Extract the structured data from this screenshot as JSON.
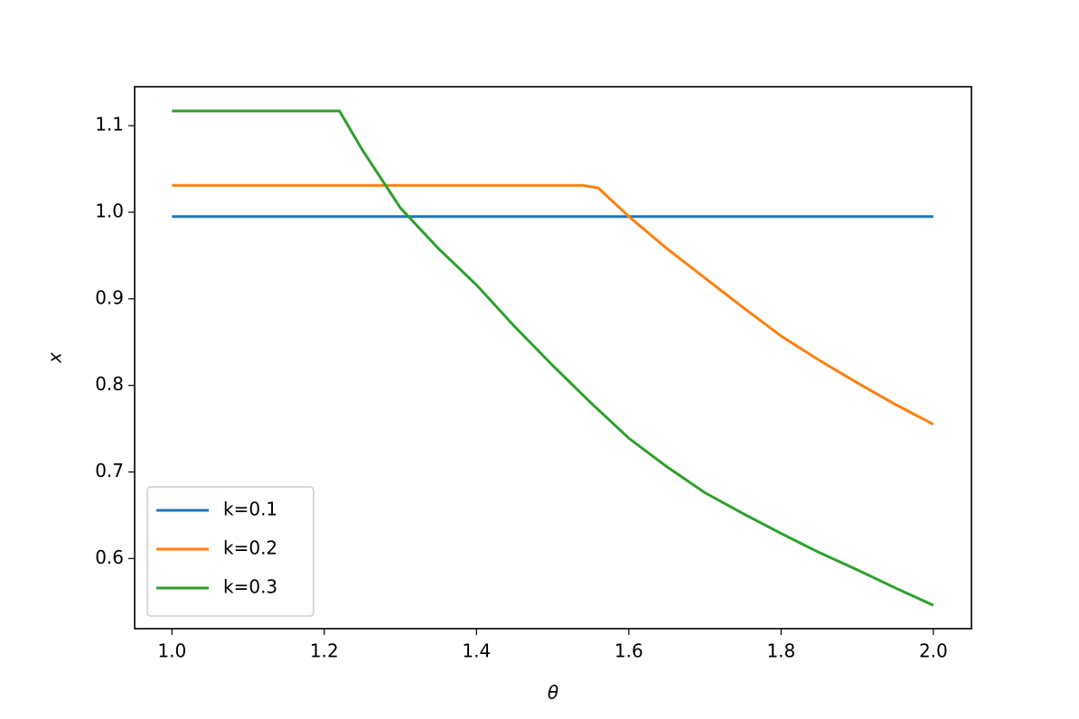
{
  "chart_data": {
    "type": "line",
    "xlabel": "θ",
    "ylabel": "x",
    "xlim": [
      0.951,
      2.05
    ],
    "ylim": [
      0.519,
      1.145
    ],
    "xticks": [
      {
        "value": 1.0,
        "label": "1.0"
      },
      1.2,
      1.4,
      1.6,
      1.8,
      {
        "value": 2.0,
        "label": "2.0"
      }
    ],
    "yticks": [
      0.6,
      0.7,
      0.8,
      0.9,
      {
        "value": 1.0,
        "label": "1.0"
      },
      1.1
    ],
    "legend": "lower left",
    "series": [
      {
        "name": "k=0.1",
        "color": "#1f77b4",
        "x": [
          1.0,
          2.0
        ],
        "values": [
          0.995,
          0.995
        ]
      },
      {
        "name": "k=0.2",
        "color": "#ff7f0e",
        "x": [
          1.0,
          1.54,
          1.56,
          1.6,
          1.65,
          1.7,
          1.75,
          1.8,
          1.85,
          1.9,
          1.95,
          2.0
        ],
        "values": [
          1.031,
          1.031,
          1.028,
          0.995,
          0.958,
          0.924,
          0.89,
          0.857,
          0.829,
          0.803,
          0.778,
          0.755
        ]
      },
      {
        "name": "k=0.3",
        "color": "#2ca02c",
        "x": [
          1.0,
          1.22,
          1.25,
          1.3,
          1.35,
          1.4,
          1.45,
          1.5,
          1.55,
          1.6,
          1.65,
          1.7,
          1.75,
          1.8,
          1.85,
          1.9,
          1.95,
          2.0
        ],
        "values": [
          1.117,
          1.117,
          1.072,
          1.005,
          0.958,
          0.916,
          0.868,
          0.823,
          0.78,
          0.739,
          0.706,
          0.676,
          0.652,
          0.629,
          0.607,
          0.587,
          0.566,
          0.546
        ]
      }
    ]
  }
}
